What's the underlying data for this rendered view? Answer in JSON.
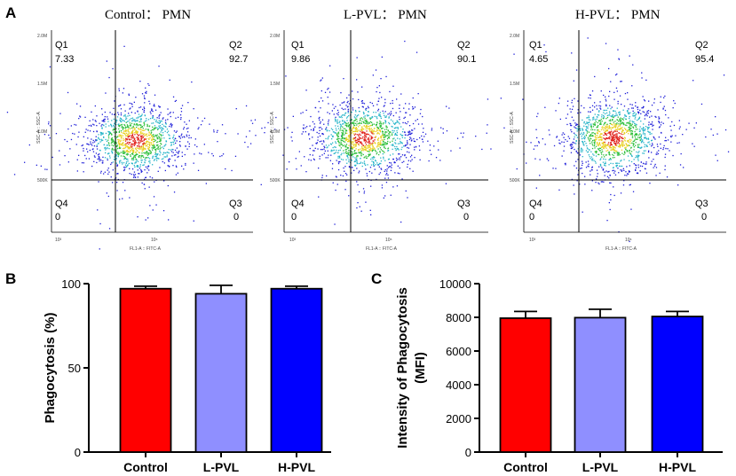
{
  "panel_labels": {
    "a": "A",
    "b": "B",
    "c": "C"
  },
  "flow_plots": [
    {
      "title": "Control： PMN",
      "q1": "Q1",
      "q1_value": "7.33",
      "q2": "Q2",
      "q2_value": "92.7",
      "q3": "Q3",
      "q3_value": "0",
      "q4": "Q4",
      "q4_value": "0",
      "x_axis_label": "FL1-A :: FITC-A",
      "y_axis_label": "SSC-A :: SSC-A",
      "x_ticks": [
        "10³",
        "10⁶"
      ],
      "y_ticks": [
        "2.0M",
        "1.5M",
        "1.0M",
        "500K"
      ]
    },
    {
      "title": "L-PVL： PMN",
      "q1": "Q1",
      "q1_value": "9.86",
      "q2": "Q2",
      "q2_value": "90.1",
      "q3": "Q3",
      "q3_value": "0",
      "q4": "Q4",
      "q4_value": "0",
      "x_axis_label": "FL1-A :: FITC-A",
      "y_axis_label": "SSC-A :: SSC-A",
      "x_ticks": [
        "10³",
        "10⁶"
      ],
      "y_ticks": [
        "2.0M",
        "1.5M",
        "1.0M",
        "500K"
      ]
    },
    {
      "title": "H-PVL： PMN",
      "q1": "Q1",
      "q1_value": "4.65",
      "q2": "Q2",
      "q2_value": "95.4",
      "q3": "Q3",
      "q3_value": "0",
      "q4": "Q4",
      "q4_value": "0",
      "x_axis_label": "FL1-A :: FITC-A",
      "y_axis_label": "SSC-A :: SSC-A",
      "x_ticks": [
        "10³",
        "10⁶"
      ],
      "y_ticks": [
        "2.0M",
        "1.5M",
        "1.0M",
        "500K"
      ]
    }
  ],
  "colors": {
    "control": "#ff0000",
    "l_pvl": "#8f8fff",
    "h_pvl": "#0000ff"
  },
  "chart_data": [
    {
      "type": "bar",
      "panel": "B",
      "categories": [
        "Control",
        "L-PVL",
        "H-PVL"
      ],
      "values": [
        97,
        94,
        97
      ],
      "errors": [
        1.5,
        5,
        1.5
      ],
      "ylabel": "Phagocytosis (%)",
      "xlabel": "",
      "ylim": [
        0,
        100
      ],
      "yticks": [
        0,
        50,
        100
      ]
    },
    {
      "type": "bar",
      "panel": "C",
      "categories": [
        "Control",
        "L-PVL",
        "H-PVL"
      ],
      "values": [
        7950,
        7980,
        8050
      ],
      "errors": [
        400,
        500,
        300
      ],
      "ylabel": "Intensity of Phagocytosis",
      "ylabel2": "(MFI)",
      "xlabel": "",
      "ylim": [
        0,
        10000
      ],
      "yticks": [
        0,
        2000,
        4000,
        6000,
        8000,
        10000
      ]
    }
  ]
}
